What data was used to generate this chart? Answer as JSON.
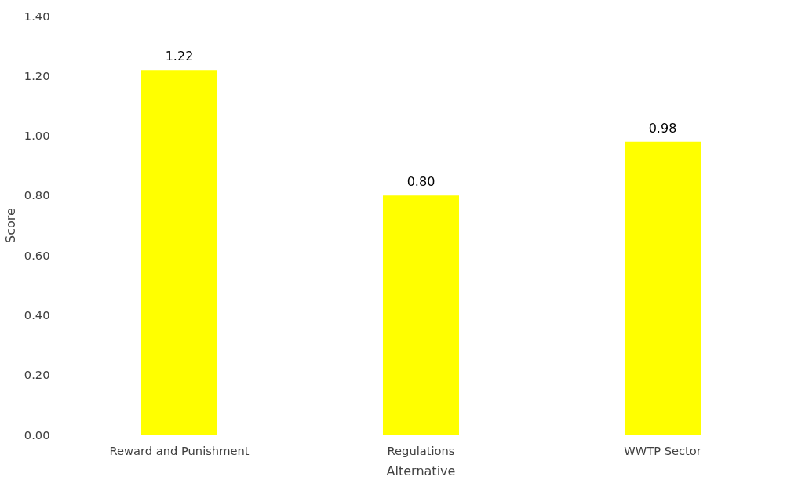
{
  "chart_data": {
    "type": "bar",
    "xlabel": "Alternative",
    "ylabel": "Score",
    "categories": [
      "Reward and Punishment",
      "Regulations",
      "WWTP Sector"
    ],
    "values": [
      1.22,
      0.8,
      0.98
    ],
    "color": "#ffff00",
    "value_labels": [
      "1.22",
      "0.80",
      "0.98"
    ],
    "ylim": [
      0,
      1.4
    ],
    "yticks": [
      {
        "value": 0,
        "label": "0.00"
      },
      {
        "value": 0.2,
        "label": "0.20"
      },
      {
        "value": 0.4,
        "label": "0.40"
      },
      {
        "value": 0.6,
        "label": "0.60"
      },
      {
        "value": 0.8,
        "label": "0.80"
      },
      {
        "value": 1.0,
        "label": "1.00"
      },
      {
        "value": 1.2,
        "label": "1.20"
      },
      {
        "value": 1.4,
        "label": "1.40"
      }
    ],
    "grid": false
  }
}
